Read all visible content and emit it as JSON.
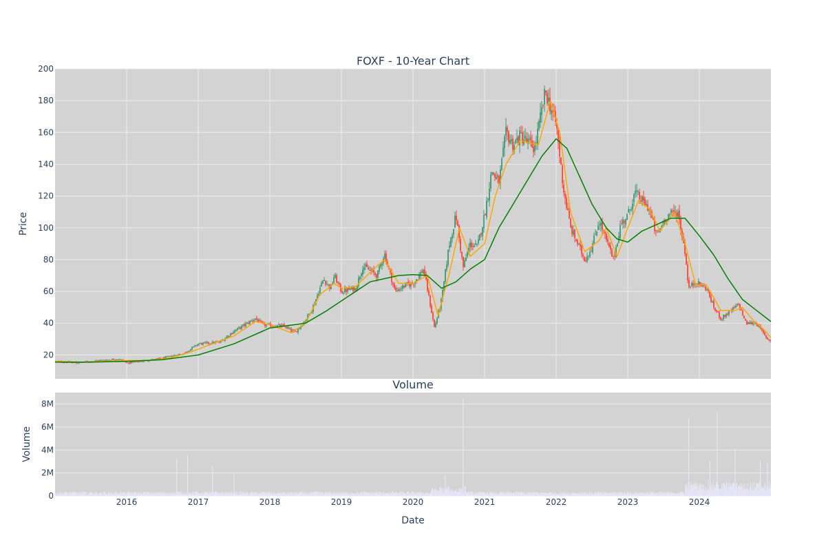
{
  "chart_data": {
    "type": "candlestick",
    "title": "FOXF - 10-Year Chart",
    "subplot_title": "Volume",
    "xlabel": "Date",
    "price_axis": {
      "label": "Price",
      "ylim": [
        5,
        200
      ],
      "ticks": [
        "20",
        "40",
        "60",
        "80",
        "100",
        "120",
        "140",
        "160",
        "180",
        "200"
      ]
    },
    "volume_axis": {
      "label": "Volume",
      "ylim": [
        0,
        9
      ],
      "unit": "M",
      "ticks": [
        "0",
        "2M",
        "4M",
        "6M",
        "8M"
      ]
    },
    "x_range": [
      2015.0,
      2025.0
    ],
    "x_ticks": [
      "2016",
      "2017",
      "2018",
      "2019",
      "2020",
      "2021",
      "2022",
      "2023",
      "2024"
    ],
    "grid": true,
    "legend": "none",
    "colors": {
      "background": "#d3d3d3",
      "grid": "#ececec",
      "up": "#3d9970",
      "down": "#ff4136",
      "ma_short": "#ffa500",
      "ma_long": "#008000",
      "volume": "#e6e6fa",
      "text": "#2a3f5f"
    },
    "series": [
      {
        "kind": "price_close",
        "points": [
          [
            2015.0,
            16
          ],
          [
            2015.3,
            15
          ],
          [
            2015.6,
            16.5
          ],
          [
            2015.9,
            17.5
          ],
          [
            2016.0,
            15
          ],
          [
            2016.2,
            16
          ],
          [
            2016.5,
            18
          ],
          [
            2016.8,
            21
          ],
          [
            2017.0,
            27
          ],
          [
            2017.3,
            28
          ],
          [
            2017.5,
            35
          ],
          [
            2017.8,
            43
          ],
          [
            2017.9,
            39
          ],
          [
            2018.2,
            38
          ],
          [
            2018.35,
            34
          ],
          [
            2018.5,
            42
          ],
          [
            2018.6,
            50
          ],
          [
            2018.75,
            68
          ],
          [
            2018.85,
            62
          ],
          [
            2018.9,
            70
          ],
          [
            2019.0,
            60
          ],
          [
            2019.2,
            62
          ],
          [
            2019.3,
            76
          ],
          [
            2019.5,
            70
          ],
          [
            2019.6,
            84
          ],
          [
            2019.75,
            60
          ],
          [
            2019.9,
            64
          ],
          [
            2020.0,
            65
          ],
          [
            2020.15,
            74
          ],
          [
            2020.3,
            37
          ],
          [
            2020.4,
            55
          ],
          [
            2020.5,
            88
          ],
          [
            2020.6,
            108
          ],
          [
            2020.7,
            75
          ],
          [
            2020.8,
            90
          ],
          [
            2020.9,
            88
          ],
          [
            2021.0,
            108
          ],
          [
            2021.1,
            136
          ],
          [
            2021.2,
            128
          ],
          [
            2021.3,
            160
          ],
          [
            2021.4,
            152
          ],
          [
            2021.5,
            158
          ],
          [
            2021.7,
            150
          ],
          [
            2021.85,
            186
          ],
          [
            2022.0,
            165
          ],
          [
            2022.1,
            125
          ],
          [
            2022.2,
            100
          ],
          [
            2022.4,
            80
          ],
          [
            2022.5,
            88
          ],
          [
            2022.6,
            105
          ],
          [
            2022.7,
            92
          ],
          [
            2022.8,
            80
          ],
          [
            2022.9,
            102
          ],
          [
            2023.0,
            108
          ],
          [
            2023.1,
            122
          ],
          [
            2023.3,
            112
          ],
          [
            2023.4,
            95
          ],
          [
            2023.55,
            108
          ],
          [
            2023.7,
            110
          ],
          [
            2023.8,
            85
          ],
          [
            2023.85,
            62
          ],
          [
            2023.95,
            66
          ],
          [
            2024.1,
            62
          ],
          [
            2024.2,
            50
          ],
          [
            2024.3,
            43
          ],
          [
            2024.45,
            48
          ],
          [
            2024.55,
            52
          ],
          [
            2024.65,
            40
          ],
          [
            2024.8,
            40
          ],
          [
            2024.95,
            30
          ],
          [
            2025.0,
            29
          ]
        ]
      },
      {
        "kind": "ma_short",
        "name": "",
        "points": [
          [
            2015.0,
            16
          ],
          [
            2015.4,
            15.5
          ],
          [
            2016.0,
            16.5
          ],
          [
            2016.3,
            16.5
          ],
          [
            2016.6,
            18
          ],
          [
            2016.9,
            22
          ],
          [
            2017.2,
            27
          ],
          [
            2017.5,
            32
          ],
          [
            2017.8,
            41
          ],
          [
            2018.0,
            39
          ],
          [
            2018.3,
            34
          ],
          [
            2018.5,
            40
          ],
          [
            2018.7,
            58
          ],
          [
            2018.9,
            65
          ],
          [
            2019.0,
            62
          ],
          [
            2019.2,
            63
          ],
          [
            2019.4,
            72
          ],
          [
            2019.6,
            80
          ],
          [
            2019.8,
            65
          ],
          [
            2020.0,
            65
          ],
          [
            2020.2,
            70
          ],
          [
            2020.35,
            45
          ],
          [
            2020.5,
            70
          ],
          [
            2020.65,
            100
          ],
          [
            2020.8,
            82
          ],
          [
            2021.0,
            90
          ],
          [
            2021.15,
            120
          ],
          [
            2021.3,
            140
          ],
          [
            2021.5,
            155
          ],
          [
            2021.75,
            152
          ],
          [
            2021.92,
            180
          ],
          [
            2022.05,
            160
          ],
          [
            2022.2,
            110
          ],
          [
            2022.4,
            85
          ],
          [
            2022.6,
            92
          ],
          [
            2022.7,
            100
          ],
          [
            2022.85,
            82
          ],
          [
            2023.0,
            100
          ],
          [
            2023.15,
            117
          ],
          [
            2023.3,
            112
          ],
          [
            2023.45,
            98
          ],
          [
            2023.65,
            110
          ],
          [
            2023.8,
            90
          ],
          [
            2023.95,
            64
          ],
          [
            2024.1,
            64
          ],
          [
            2024.3,
            48
          ],
          [
            2024.5,
            48
          ],
          [
            2024.6,
            50
          ],
          [
            2024.75,
            42
          ],
          [
            2024.9,
            36
          ],
          [
            2025.0,
            31
          ]
        ]
      },
      {
        "kind": "ma_long",
        "name": "",
        "points": [
          [
            2015.0,
            15.5
          ],
          [
            2015.5,
            15.5
          ],
          [
            2016.0,
            16
          ],
          [
            2016.5,
            17
          ],
          [
            2017.0,
            20
          ],
          [
            2017.5,
            27
          ],
          [
            2018.0,
            37
          ],
          [
            2018.5,
            40
          ],
          [
            2018.8,
            48
          ],
          [
            2019.0,
            54
          ],
          [
            2019.2,
            60
          ],
          [
            2019.4,
            66
          ],
          [
            2019.6,
            68
          ],
          [
            2019.8,
            70
          ],
          [
            2020.0,
            70.5
          ],
          [
            2020.2,
            70
          ],
          [
            2020.4,
            62
          ],
          [
            2020.6,
            66
          ],
          [
            2020.8,
            74
          ],
          [
            2021.0,
            80
          ],
          [
            2021.2,
            100
          ],
          [
            2021.4,
            115
          ],
          [
            2021.6,
            130
          ],
          [
            2021.8,
            145
          ],
          [
            2022.0,
            156
          ],
          [
            2022.15,
            150
          ],
          [
            2022.3,
            135
          ],
          [
            2022.5,
            115
          ],
          [
            2022.7,
            100
          ],
          [
            2022.85,
            93
          ],
          [
            2023.0,
            91
          ],
          [
            2023.2,
            98
          ],
          [
            2023.4,
            102
          ],
          [
            2023.6,
            106
          ],
          [
            2023.8,
            106
          ],
          [
            2024.0,
            95
          ],
          [
            2024.2,
            83
          ],
          [
            2024.4,
            68
          ],
          [
            2024.6,
            55
          ],
          [
            2024.8,
            48
          ],
          [
            2025.0,
            41
          ]
        ]
      }
    ],
    "volume_spikes": [
      [
        2016.7,
        3.2
      ],
      [
        2016.85,
        3.6
      ],
      [
        2017.2,
        2.5
      ],
      [
        2017.5,
        2.0
      ],
      [
        2020.45,
        1.8
      ],
      [
        2020.7,
        8.5
      ],
      [
        2023.85,
        6.8
      ],
      [
        2024.15,
        3.0
      ],
      [
        2024.25,
        7.3
      ],
      [
        2024.5,
        4.0
      ],
      [
        2024.85,
        3.1
      ],
      [
        2024.95,
        2.8
      ]
    ]
  }
}
